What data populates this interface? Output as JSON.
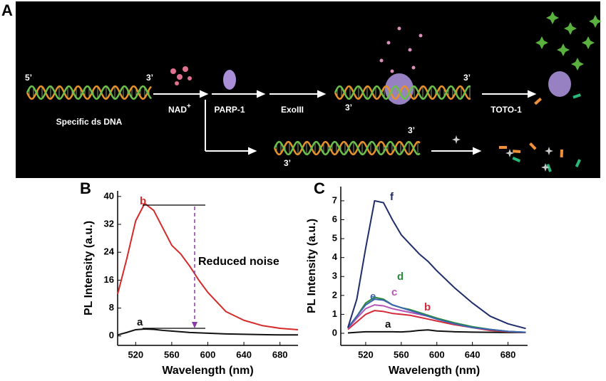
{
  "panel_a": {
    "label": "A",
    "five_prime": "5’",
    "three_prime": "3’",
    "dna": "Specific ds DNA",
    "nad": "NAD",
    "nad_sup": "+",
    "parp": "PARP-1",
    "exo": "ExoIII",
    "toto": "TOTO-1"
  },
  "chart_data": [
    {
      "type": "line",
      "label": "B",
      "annotation": "Reduced noise",
      "x_label": "Wavelength (nm)",
      "y_label": "PL Intensity (a.u.)",
      "x": [
        500,
        510,
        520,
        530,
        540,
        550,
        560,
        570,
        580,
        590,
        600,
        620,
        640,
        660,
        680,
        700
      ],
      "series": [
        {
          "name": "a",
          "color": "#111111",
          "values": [
            0.3,
            1,
            1.8,
            2,
            1.9,
            1.6,
            1.4,
            1.2,
            1,
            0.9,
            0.8,
            0.6,
            0.5,
            0.4,
            0.3,
            0.3
          ]
        },
        {
          "name": "b",
          "color": "#d42a2a",
          "values": [
            12,
            22,
            33,
            38,
            36,
            31,
            26,
            23.5,
            20,
            16,
            12.5,
            7,
            4.5,
            3,
            2.2,
            1.8
          ]
        }
      ],
      "xlim": [
        500,
        700
      ],
      "xticks": [
        520,
        560,
        600,
        640,
        680
      ],
      "ylim": [
        -2.7,
        41.6
      ],
      "yticks": [
        0,
        8,
        16,
        24,
        32,
        40
      ]
    },
    {
      "type": "line",
      "label": "C",
      "x_label": "Wavelength (nm)",
      "y_label": "PL Intensity (a.u.)",
      "x": [
        500,
        510,
        520,
        530,
        540,
        550,
        560,
        570,
        580,
        590,
        600,
        620,
        640,
        660,
        680,
        700
      ],
      "series": [
        {
          "name": "a",
          "color": "#111111",
          "values": [
            0.02,
            0.05,
            0.08,
            0.08,
            0.08,
            0.08,
            0.07,
            0.1,
            0.15,
            0.18,
            0.12,
            0.08,
            0.06,
            0.05,
            0.04,
            0.04
          ]
        },
        {
          "name": "b",
          "color": "#d42a3a",
          "values": [
            0.2,
            0.6,
            1.0,
            1.2,
            1.15,
            1.05,
            1.0,
            0.95,
            0.85,
            0.75,
            0.65,
            0.45,
            0.3,
            0.15,
            0.08,
            0.04
          ]
        },
        {
          "name": "c",
          "color": "#b456b8",
          "values": [
            0.25,
            0.8,
            1.3,
            1.5,
            1.45,
            1.3,
            1.2,
            1.1,
            1.0,
            0.9,
            0.75,
            0.5,
            0.3,
            0.2,
            0.1,
            0.05
          ]
        },
        {
          "name": "d",
          "color": "#2a8a3c",
          "values": [
            0.3,
            0.9,
            1.6,
            1.9,
            1.8,
            1.5,
            1.35,
            1.25,
            1.1,
            0.95,
            0.8,
            0.55,
            0.35,
            0.2,
            0.1,
            0.05
          ]
        },
        {
          "name": "e",
          "color": "#3a66b0",
          "values": [
            0.3,
            0.9,
            1.5,
            1.8,
            1.75,
            1.5,
            1.35,
            1.2,
            1.05,
            0.9,
            0.75,
            0.5,
            0.3,
            0.2,
            0.1,
            0.05
          ]
        },
        {
          "name": "f",
          "color": "#1f2d6b",
          "values": [
            0.3,
            1.8,
            4.5,
            7.0,
            6.9,
            6.0,
            5.2,
            4.7,
            4.2,
            3.8,
            3.3,
            2.4,
            1.6,
            0.9,
            0.5,
            0.25
          ]
        }
      ],
      "xlim": [
        492,
        702
      ],
      "xticks": [
        520,
        560,
        600,
        640,
        680
      ],
      "ylim": [
        -0.64,
        7.75
      ],
      "yticks": [
        0,
        1,
        2,
        3,
        4,
        5,
        6,
        7
      ]
    }
  ]
}
